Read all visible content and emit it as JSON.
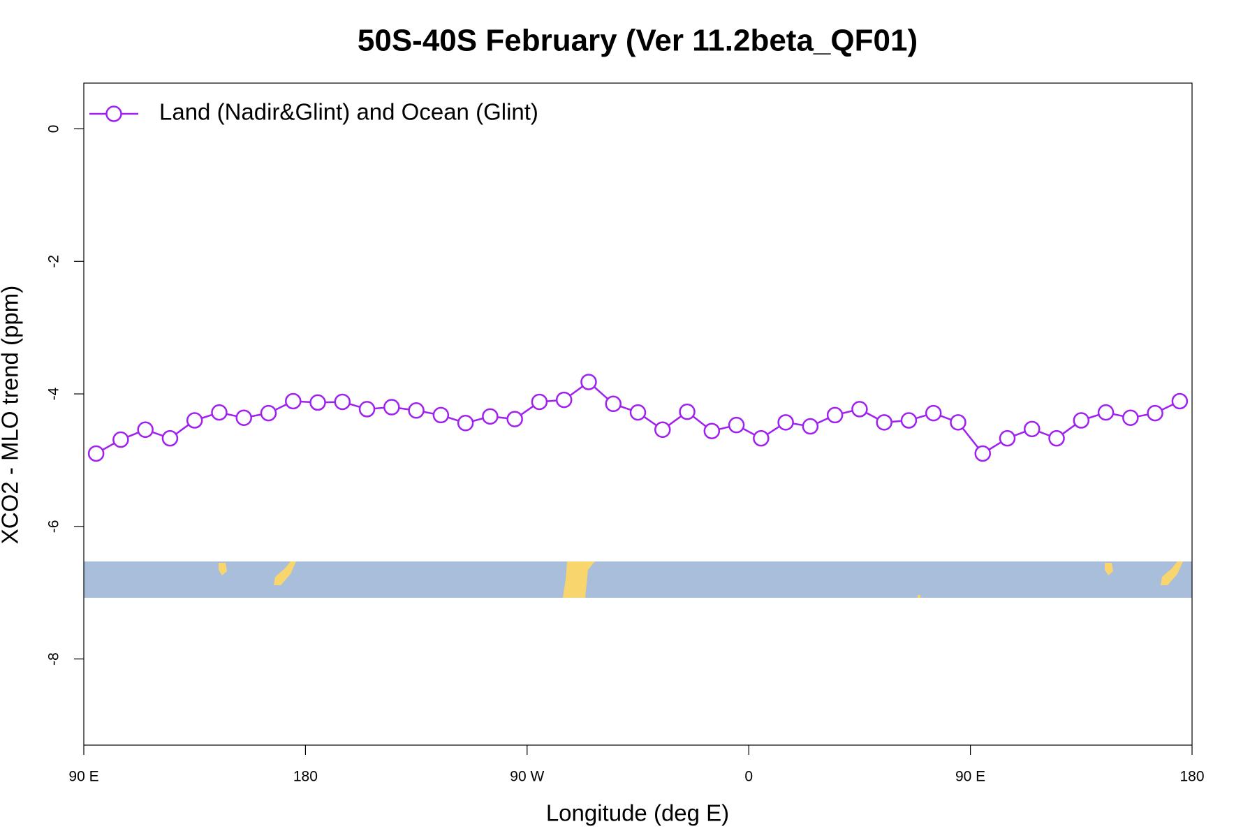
{
  "chart_data": {
    "type": "line",
    "title": "50S-40S February (Ver 11.2beta_QF01)",
    "xlabel": "Longitude (deg E)",
    "ylabel": "XCO2 - MLO trend (ppm)",
    "x": [
      95,
      105,
      115,
      125,
      135,
      145,
      155,
      165,
      175,
      185,
      195,
      205,
      215,
      225,
      235,
      245,
      255,
      265,
      275,
      285,
      295,
      305,
      315,
      325,
      335,
      345,
      355,
      365,
      375,
      385,
      395,
      405,
      415,
      425,
      435,
      445,
      455,
      465,
      475,
      485,
      495,
      505,
      515,
      525,
      535
    ],
    "series": [
      {
        "name": "Land (Nadir&Glint) and Ocean (Glint)",
        "color": "#a020f0",
        "values": [
          -4.9,
          -4.69,
          -4.54,
          -4.67,
          -4.4,
          -4.28,
          -4.36,
          -4.29,
          -4.11,
          -4.13,
          -4.12,
          -4.23,
          -4.2,
          -4.25,
          -4.32,
          -4.44,
          -4.34,
          -4.38,
          -4.12,
          -4.09,
          -3.82,
          -4.15,
          -4.28,
          -4.54,
          -4.27,
          -4.56,
          -4.47,
          -4.67,
          -4.43,
          -4.49,
          -4.32,
          -4.23,
          -4.43,
          -4.4,
          -4.29,
          -4.43,
          -4.9,
          -4.67,
          -4.53,
          -4.67,
          -4.4,
          -4.28,
          -4.36,
          -4.29,
          -4.11
        ]
      }
    ],
    "xlim": [
      90,
      540
    ],
    "xticks": [
      {
        "value": 90,
        "label": "90 E"
      },
      180,
      {
        "value": 270,
        "label": "90 W"
      },
      {
        "value": 360,
        "label": "0"
      },
      {
        "value": 450,
        "label": "90 E"
      },
      {
        "value": 540,
        "label": "180"
      }
    ],
    "ylim": [
      -9.3,
      0.69
    ],
    "yticks": [
      0,
      -2,
      -4,
      -6,
      -8
    ],
    "legend": "top-left"
  }
}
